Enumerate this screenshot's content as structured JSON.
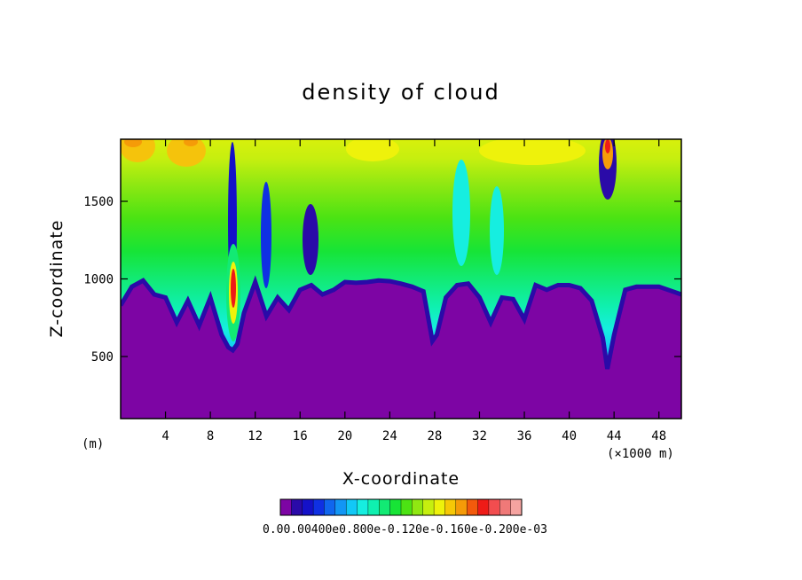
{
  "chart_data": {
    "type": "heatmap",
    "title": "density of cloud",
    "xlabel": "X-coordinate",
    "ylabel": "Z-coordinate",
    "x_unit_left": "(m)",
    "x_unit_right": "(×1000 m)",
    "xlim": [
      0,
      50
    ],
    "ylim": [
      100,
      1900
    ],
    "x_ticks": [
      "4",
      "8",
      "12",
      "16",
      "20",
      "24",
      "28",
      "32",
      "36",
      "40",
      "44",
      "48"
    ],
    "x_tick_values": [
      4,
      8,
      12,
      16,
      20,
      24,
      28,
      32,
      36,
      40,
      44,
      48
    ],
    "y_ticks": [
      "500",
      "1000",
      "1500"
    ],
    "y_tick_values": [
      500,
      1000,
      1500
    ],
    "colorbar": {
      "colors": [
        "#7d05a4",
        "#2a0aa8",
        "#1411c8",
        "#0f30e3",
        "#1066ee",
        "#1296f4",
        "#12c8f6",
        "#16eee0",
        "#0ff0b0",
        "#12ea74",
        "#17e436",
        "#4ce313",
        "#90e812",
        "#c6ef0f",
        "#eef20b",
        "#f6c806",
        "#f59b08",
        "#f25a0c",
        "#ee1b17",
        "#f24d4f",
        "#f07978",
        "#f5a3a0"
      ],
      "label_text": "0.00.00400e0.800e-0.120e-0.160e-0.200e-03"
    },
    "mask_top_profile": [
      [
        0,
        830
      ],
      [
        1,
        950
      ],
      [
        2,
        990
      ],
      [
        3,
        900
      ],
      [
        4,
        880
      ],
      [
        5,
        720
      ],
      [
        6,
        860
      ],
      [
        7,
        700
      ],
      [
        8,
        880
      ],
      [
        9,
        640
      ],
      [
        9.6,
        560
      ],
      [
        10,
        540
      ],
      [
        10.4,
        580
      ],
      [
        11,
        780
      ],
      [
        12,
        980
      ],
      [
        13,
        760
      ],
      [
        14,
        880
      ],
      [
        15,
        800
      ],
      [
        16,
        930
      ],
      [
        17,
        960
      ],
      [
        18,
        900
      ],
      [
        19,
        930
      ],
      [
        20,
        980
      ],
      [
        21,
        975
      ],
      [
        22,
        980
      ],
      [
        23,
        990
      ],
      [
        24,
        985
      ],
      [
        25,
        970
      ],
      [
        26,
        950
      ],
      [
        27,
        920
      ],
      [
        27.8,
        600
      ],
      [
        28.2,
        640
      ],
      [
        29,
        880
      ],
      [
        30,
        960
      ],
      [
        31,
        970
      ],
      [
        32,
        880
      ],
      [
        33,
        720
      ],
      [
        34,
        880
      ],
      [
        35,
        870
      ],
      [
        36,
        740
      ],
      [
        37,
        960
      ],
      [
        38,
        930
      ],
      [
        39,
        960
      ],
      [
        40,
        960
      ],
      [
        41,
        940
      ],
      [
        42,
        860
      ],
      [
        43,
        620
      ],
      [
        43.4,
        420
      ],
      [
        44,
        640
      ],
      [
        45,
        930
      ],
      [
        46,
        950
      ],
      [
        48,
        950
      ],
      [
        50,
        900
      ]
    ]
  }
}
